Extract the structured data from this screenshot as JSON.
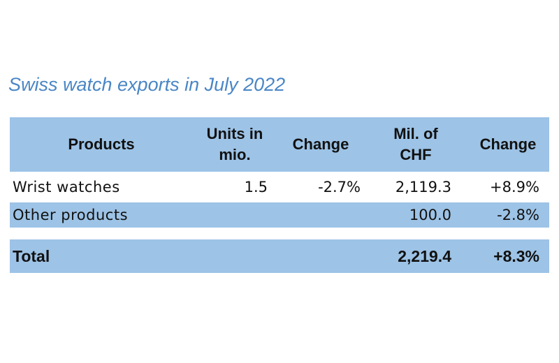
{
  "title": "Swiss watch exports in July 2022",
  "table": {
    "header": [
      "Products",
      "Units in mio.",
      "Change",
      "Mil. of CHF",
      "Change"
    ],
    "rows": [
      {
        "product": "Wrist watches",
        "units": "1.5",
        "change_units": "-2.7%",
        "value_chf": "2,119.3",
        "change_chf": "+8.9%"
      },
      {
        "product": "Other products",
        "value_chf": "100.0",
        "change_chf": "-2.8%"
      }
    ],
    "total": {
      "product": "Total",
      "value_chf": "2,219.4",
      "change_chf": "+8.3%"
    }
  }
}
